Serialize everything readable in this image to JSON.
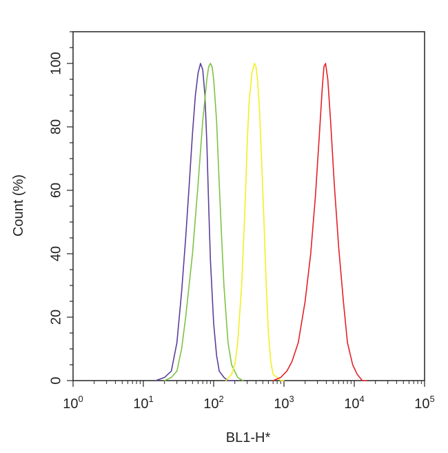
{
  "chart_data": {
    "type": "line",
    "xlabel": "BL1-H*",
    "ylabel": "Count (%)",
    "x_scale": "log",
    "xlim": [
      1,
      100000
    ],
    "ylim": [
      0,
      110
    ],
    "x_ticks": [
      {
        "value": 1,
        "base": "10",
        "exp": "0"
      },
      {
        "value": 10,
        "base": "10",
        "exp": "1"
      },
      {
        "value": 100,
        "base": "10",
        "exp": "2"
      },
      {
        "value": 1000,
        "base": "10",
        "exp": "3"
      },
      {
        "value": 10000,
        "base": "10",
        "exp": "4"
      },
      {
        "value": 100000,
        "base": "10",
        "exp": "5"
      }
    ],
    "y_ticks": [
      0,
      20,
      40,
      60,
      80,
      100
    ],
    "grid": false,
    "series": [
      {
        "color": "#5a3d99",
        "x": [
          15,
          20,
          25,
          30,
          35,
          40,
          45,
          50,
          55,
          60,
          65,
          70,
          75,
          80,
          85,
          90,
          100,
          110,
          120,
          140,
          160,
          200
        ],
        "y": [
          0,
          1,
          3,
          12,
          28,
          45,
          62,
          78,
          90,
          97,
          100,
          98,
          90,
          75,
          55,
          38,
          18,
          8,
          3,
          1,
          0,
          0
        ]
      },
      {
        "color": "#7dc242",
        "x": [
          20,
          25,
          30,
          35,
          40,
          50,
          60,
          70,
          80,
          85,
          90,
          95,
          100,
          110,
          120,
          130,
          140,
          160,
          180,
          220,
          260
        ],
        "y": [
          0,
          1,
          3,
          10,
          20,
          40,
          62,
          82,
          95,
          99,
          100,
          99,
          95,
          82,
          62,
          45,
          30,
          12,
          5,
          1,
          0
        ]
      },
      {
        "color": "#f2ef22",
        "x": [
          150,
          180,
          200,
          220,
          250,
          280,
          300,
          320,
          350,
          380,
          400,
          420,
          450,
          480,
          520,
          560,
          600,
          650,
          700,
          800,
          900,
          1000
        ],
        "y": [
          0,
          2,
          5,
          12,
          30,
          55,
          75,
          88,
          97,
          100,
          99,
          95,
          85,
          70,
          50,
          30,
          15,
          6,
          2,
          1,
          0,
          0
        ]
      },
      {
        "color": "#e41f26",
        "x": [
          700,
          900,
          1100,
          1300,
          1600,
          2000,
          2400,
          2800,
          3200,
          3500,
          3700,
          3900,
          4200,
          4600,
          5200,
          6000,
          7000,
          8000,
          9500,
          11000,
          13000,
          15000
        ],
        "y": [
          0,
          1,
          3,
          6,
          12,
          25,
          40,
          58,
          78,
          92,
          99,
          100,
          95,
          82,
          62,
          42,
          25,
          12,
          5,
          2,
          0,
          0
        ]
      }
    ]
  }
}
